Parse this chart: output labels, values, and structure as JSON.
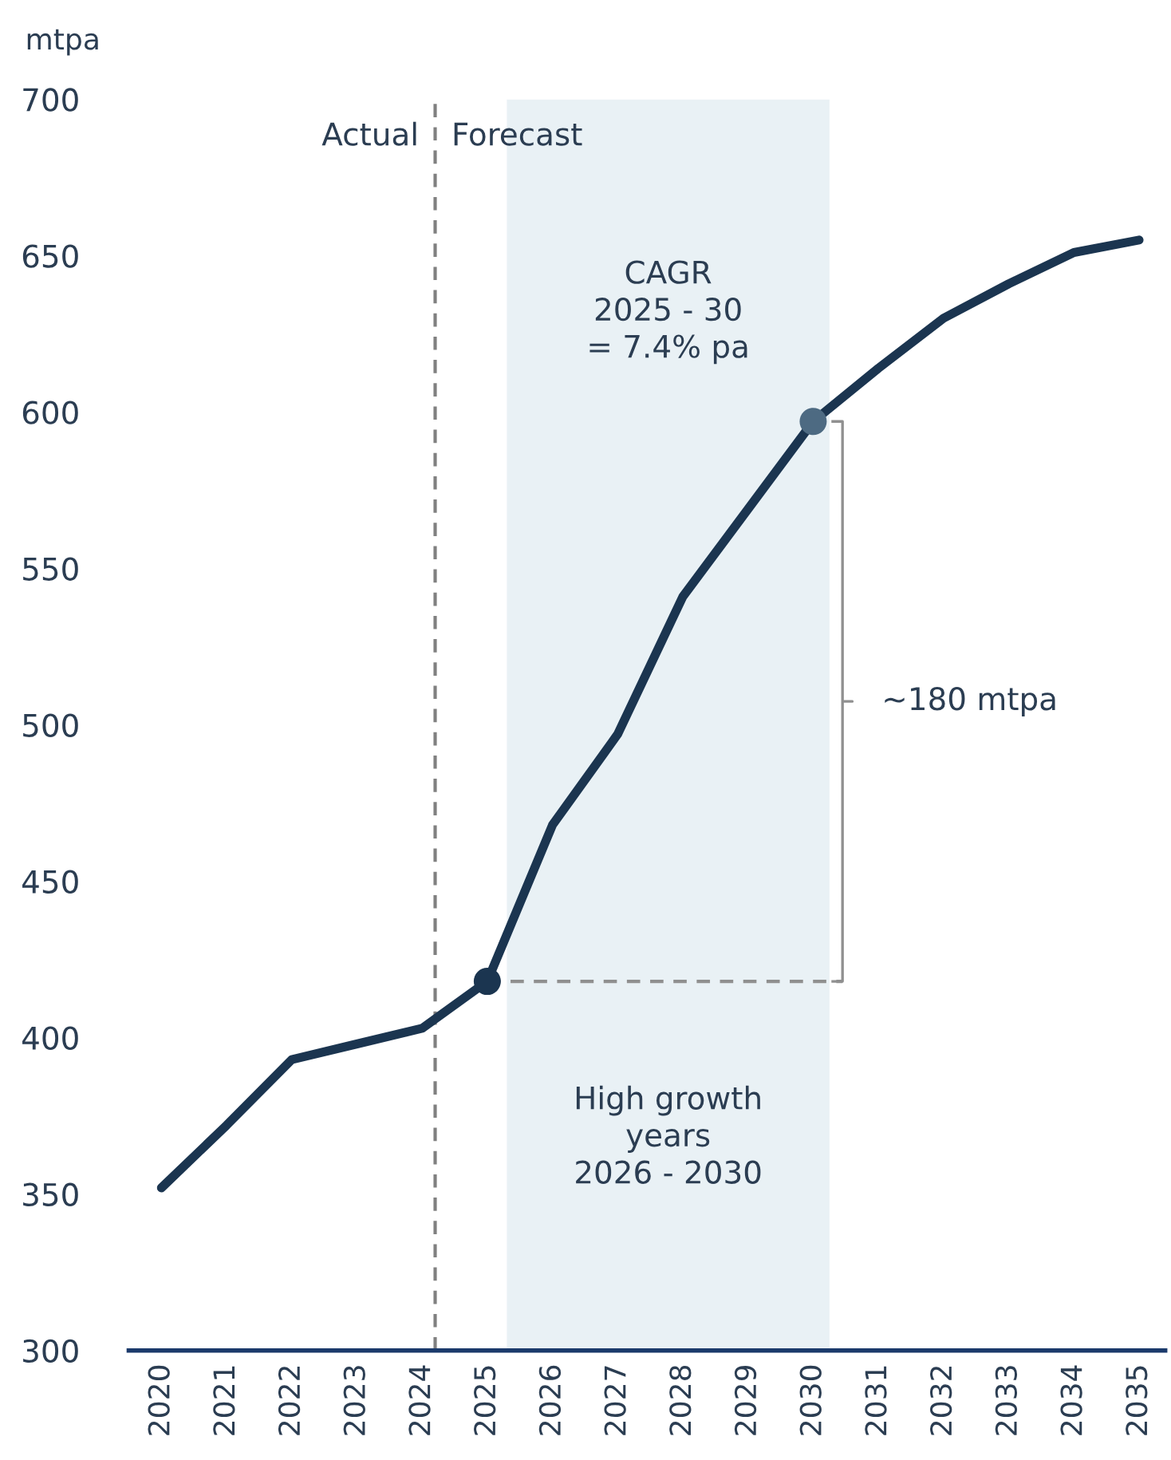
{
  "chart_data": {
    "type": "line",
    "ylabel": "mtpa",
    "x": [
      2020,
      2021,
      2022,
      2023,
      2024,
      2025,
      2026,
      2027,
      2028,
      2029,
      2030,
      2031,
      2032,
      2033,
      2034,
      2035
    ],
    "series": [
      {
        "color": "#1b3550",
        "values": [
          352,
          372,
          393,
          398,
          403,
          418,
          468,
          497,
          541,
          569,
          597,
          614,
          630,
          641,
          651,
          655
        ]
      },
      {
        "type": "scatter",
        "x": [
          2025,
          2030
        ],
        "colors": [
          "#1b3550",
          "#4d6a82"
        ],
        "values": [
          418,
          597
        ],
        "marker": "circle"
      }
    ],
    "xlim": [
      2019.5,
      2035.4
    ],
    "ylim": [
      300,
      700
    ],
    "xticks": [
      2020,
      2021,
      2022,
      2023,
      2024,
      2025,
      2026,
      2027,
      2028,
      2029,
      2030,
      2031,
      2032,
      2033,
      2034,
      2035
    ],
    "yticks": [
      300,
      350,
      400,
      450,
      500,
      550,
      600,
      650,
      700
    ],
    "ref_lines": [
      {
        "axis": "x",
        "value": 2024.2,
        "color": "#808080",
        "line_style": "dashed"
      },
      {
        "axis": "y",
        "value": 418,
        "color": "#909090",
        "line_style": "dashed"
      }
    ],
    "bands": [
      {
        "axis": "x",
        "from": 2025.3,
        "to": 2030.25,
        "color": "#e9f1f5"
      }
    ],
    "annotations": [
      "Actual",
      "Forecast",
      "CAGR\n2025 - 30\n= 7.4% pa",
      "High growth\nyears\n2026 - 2030",
      "~180 mtpa"
    ],
    "grid": false,
    "legend": false
  }
}
